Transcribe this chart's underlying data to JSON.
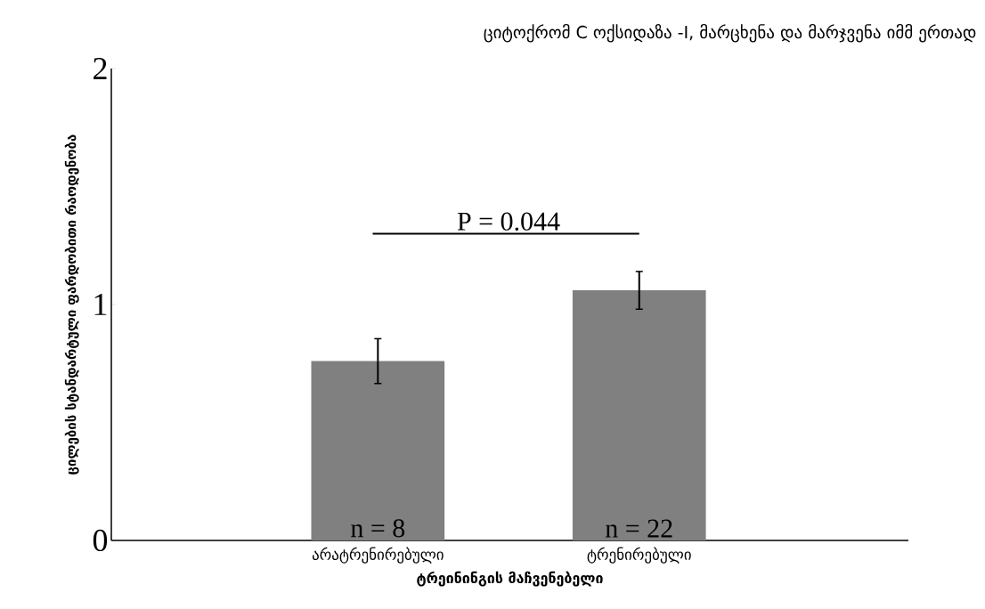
{
  "chart_data": {
    "type": "bar",
    "title": "ციტოქრომ C ოქსიდაზა -I,  მარცხენა და მარჯვენა  იმმ ერთად",
    "xlabel": "ტრეინინგის მაჩვენებელი",
    "ylabel": "ცილების სტანდარტული ფარდობითი რაოდენობა",
    "categories": [
      "არატრენირებული",
      "ტრენირებული"
    ],
    "values": [
      0.76,
      1.06
    ],
    "errors": [
      0.095,
      0.08
    ],
    "color": "#808080",
    "ylim": [
      0,
      2
    ],
    "yticks": [
      0,
      1,
      2
    ],
    "annotations": [
      "P = 0.044",
      "n = 8",
      "n = 22"
    ]
  }
}
